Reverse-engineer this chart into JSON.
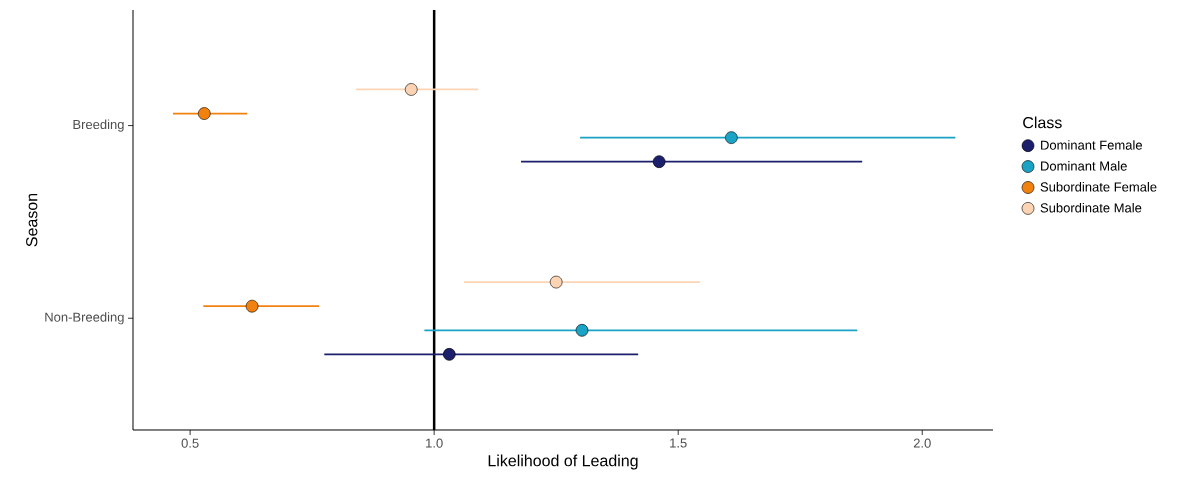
{
  "chart_data": {
    "type": "scatter",
    "orientation": "horizontal",
    "categories": [
      "Breeding",
      "Non-Breeding"
    ],
    "xlabel": "Likelihood of Leading",
    "ylabel": "Season",
    "legend_title": "Class",
    "legend": "right",
    "marker": "circle",
    "xlim": [
      0.383,
      2.145
    ],
    "xticks": [
      {
        "value": 0.5,
        "label": "0.5"
      },
      {
        "value": 1.0,
        "label": "1.0"
      },
      {
        "value": 1.5,
        "label": "1.5"
      },
      {
        "value": 2.0,
        "label": "2.0"
      }
    ],
    "ref_lines": [
      {
        "axis": "x",
        "value": 1.0,
        "color": "#000000"
      }
    ],
    "series": [
      {
        "name": "Dominant Female",
        "color": "#1c1f6b",
        "values": [
          1.461,
          1.031
        ],
        "errors": [
          [
            1.178,
            1.877
          ],
          [
            0.775,
            1.418
          ]
        ]
      },
      {
        "name": "Dominant Male",
        "color": "#1aa3c4",
        "values": [
          1.609,
          1.303
        ],
        "errors": [
          [
            1.299,
            2.068
          ],
          [
            0.98,
            1.867
          ]
        ]
      },
      {
        "name": "Subordinate Female",
        "color": "#f2820f",
        "values": [
          0.529,
          0.627
        ],
        "errors": [
          [
            0.465,
            0.617
          ],
          [
            0.527,
            0.764
          ]
        ]
      },
      {
        "name": "Subordinate Male",
        "color": "#fcd3b3",
        "values": [
          0.953,
          1.25
        ],
        "errors": [
          [
            0.84,
            1.09
          ],
          [
            1.061,
            1.545
          ]
        ]
      }
    ]
  }
}
